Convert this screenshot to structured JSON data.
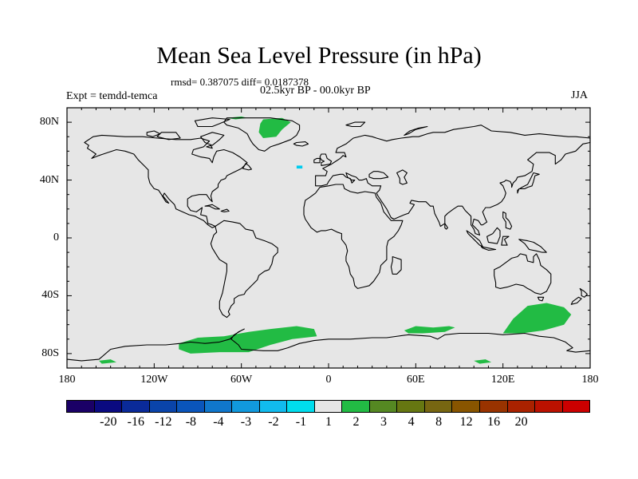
{
  "title": "Mean Sea Level Pressure (in hPa)",
  "stats_line": "rmsd= 0.387075 diff= 0.0187378",
  "period_line": "02.5kyr BP - 00.0kyr BP",
  "experiment": "Expt = temdd-temca",
  "season": "JJA",
  "colors": {
    "ocean_background": "#e6e6e6",
    "coastline": "#000000",
    "positive_fill": "#22bb44",
    "cyan_fill": "#00ccee"
  },
  "chart_data": {
    "type": "map",
    "projection": "cylindrical-equidistant",
    "lon_range": [
      -180,
      180
    ],
    "lat_range": [
      -90,
      90
    ],
    "x_ticks": [
      {
        "value": -180,
        "label": "180"
      },
      {
        "value": -120,
        "label": "120W"
      },
      {
        "value": -60,
        "label": "60W"
      },
      {
        "value": 0,
        "label": "0"
      },
      {
        "value": 60,
        "label": "60E"
      },
      {
        "value": 120,
        "label": "120E"
      },
      {
        "value": 180,
        "label": "180"
      }
    ],
    "y_ticks": [
      {
        "value": 80,
        "label": "80N"
      },
      {
        "value": 40,
        "label": "40N"
      },
      {
        "value": 0,
        "label": "0"
      },
      {
        "value": -40,
        "label": "40S"
      },
      {
        "value": -80,
        "label": "80S"
      }
    ],
    "anomaly_regions": [
      {
        "name": "south-pacific-atlantic-antarctic",
        "level": "1 to 2",
        "color": "#22bb44",
        "points": [
          [
            -103,
            -73
          ],
          [
            -90,
            -69
          ],
          [
            -72,
            -68
          ],
          [
            -55,
            -65
          ],
          [
            -40,
            -63
          ],
          [
            -22,
            -61
          ],
          [
            -10,
            -63
          ],
          [
            -8,
            -68
          ],
          [
            -25,
            -70
          ],
          [
            -40,
            -74
          ],
          [
            -55,
            -79
          ],
          [
            -75,
            -79
          ],
          [
            -95,
            -80
          ],
          [
            -103,
            -77
          ]
        ]
      },
      {
        "name": "indian-ocean-antarctic",
        "level": "1 to 2",
        "color": "#22bb44",
        "points": [
          [
            52,
            -64
          ],
          [
            60,
            -61
          ],
          [
            72,
            -62
          ],
          [
            83,
            -61
          ],
          [
            87,
            -62
          ],
          [
            80,
            -65
          ],
          [
            65,
            -66
          ],
          [
            55,
            -66
          ]
        ]
      },
      {
        "name": "south-of-australia",
        "level": "1 to 2",
        "color": "#22bb44",
        "points": [
          [
            120,
            -66
          ],
          [
            127,
            -56
          ],
          [
            137,
            -47
          ],
          [
            150,
            -45
          ],
          [
            162,
            -48
          ],
          [
            167,
            -53
          ],
          [
            162,
            -60
          ],
          [
            148,
            -64
          ],
          [
            133,
            -66
          ]
        ]
      },
      {
        "name": "greenland-east",
        "level": "1 to 2",
        "color": "#22bb44",
        "points": [
          [
            -45,
            82
          ],
          [
            -32,
            83
          ],
          [
            -26,
            80
          ],
          [
            -32,
            75
          ],
          [
            -36,
            70
          ],
          [
            -45,
            69
          ],
          [
            -48,
            73
          ],
          [
            -47,
            79
          ]
        ]
      },
      {
        "name": "greenland-north",
        "level": "1 to 2",
        "color": "#22bb44",
        "points": [
          [
            -70,
            83
          ],
          [
            -60,
            84
          ],
          [
            -56,
            83
          ],
          [
            -64,
            82
          ]
        ]
      },
      {
        "name": "north-atlantic-cyan",
        "level": "-2 to -1",
        "color": "#00ccee",
        "points": [
          [
            -22,
            50
          ],
          [
            -18,
            50
          ],
          [
            -18,
            48
          ],
          [
            -22,
            48
          ]
        ]
      },
      {
        "name": "ross-sea-small",
        "level": "1 to 2",
        "color": "#22bb44",
        "points": [
          [
            -158,
            -85
          ],
          [
            -150,
            -84
          ],
          [
            -146,
            -86
          ],
          [
            -156,
            -87
          ]
        ]
      },
      {
        "name": "east-antarctic-small",
        "level": "1 to 2",
        "color": "#22bb44",
        "points": [
          [
            100,
            -85
          ],
          [
            108,
            -84
          ],
          [
            112,
            -86
          ],
          [
            104,
            -87
          ]
        ]
      }
    ]
  },
  "colorbar": {
    "colors": [
      "#1a0066",
      "#0a0a80",
      "#0a2a99",
      "#0a44aa",
      "#0a55bb",
      "#1077cc",
      "#1199dd",
      "#11bbee",
      "#00ddee",
      "#e6e6e6",
      "#22bb44",
      "#558822",
      "#667711",
      "#776611",
      "#885500",
      "#993300",
      "#aa2200",
      "#bb1100",
      "#cc0000"
    ],
    "labels": [
      "-20",
      "-16",
      "-12",
      "-8",
      "-4",
      "-3",
      "-2",
      "-1",
      "1",
      "2",
      "3",
      "4",
      "8",
      "12",
      "16",
      "20"
    ],
    "label_start_index": 1
  }
}
